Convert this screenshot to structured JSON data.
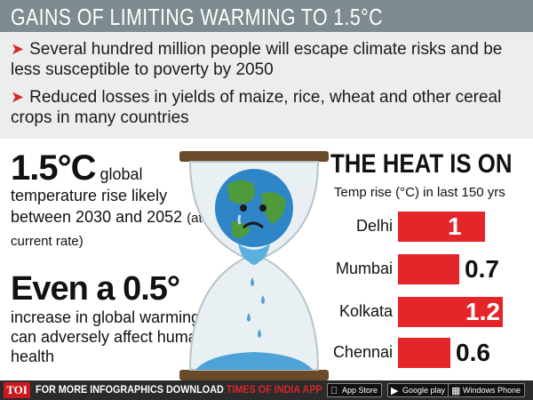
{
  "title": "GAINS OF LIMITING WARMING TO 1.5°C",
  "bullets": [
    "Several hundred million people will escape climate risks and be less susceptible to poverty by 2050",
    "Reduced losses in yields of maize, rice, wheat and other cereal crops in many countries"
  ],
  "fact1": {
    "big": "1.5°C",
    "text": " global temperature rise likely between 2030 and 2052 ",
    "note": "(at current rate)"
  },
  "fact2": {
    "big": "Even a 0.5°",
    "text": "increase in global warming can adversely affect human health"
  },
  "chart_data": {
    "type": "bar",
    "title": "THE HEAT IS ON",
    "subtitle": "Temp rise (°C) in last 150 yrs",
    "categories": [
      "Delhi",
      "Mumbai",
      "Kolkata",
      "Chennai"
    ],
    "values": [
      1,
      0.7,
      1.2,
      0.6
    ],
    "value_labels": [
      "1",
      "0.7",
      "1.2",
      "0.6"
    ],
    "color": "#e4252a",
    "orientation": "horizontal"
  },
  "footer": {
    "logo": "TOI",
    "text_prefix": "FOR MORE  INFOGRAPHICS DOWNLOAD ",
    "text_app": "TIMES OF INDIA  APP",
    "stores": [
      {
        "label": "App Store",
        "icon": "apple-icon"
      },
      {
        "label": "Google play",
        "icon": "play-icon"
      },
      {
        "label": "Windows Phone",
        "icon": "windows-icon"
      }
    ]
  }
}
